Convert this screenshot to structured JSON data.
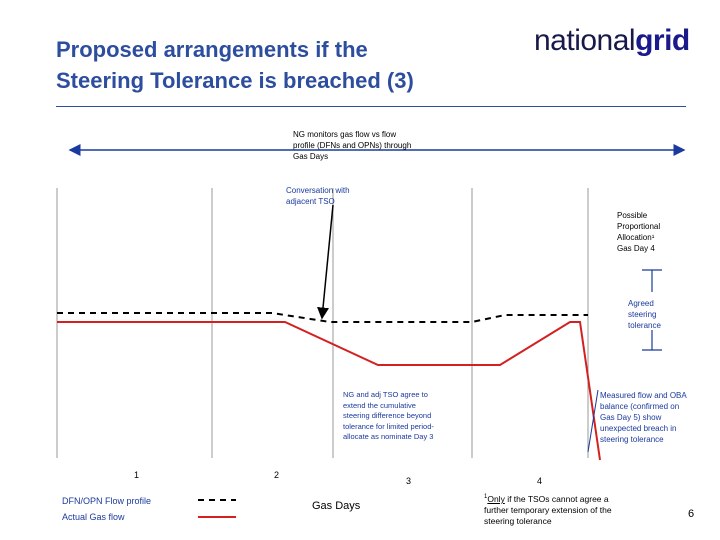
{
  "header": {
    "title_line1": "Proposed arrangements if the",
    "title_line2": "Steering Tolerance is breached (3)",
    "logo_part1": "national",
    "logo_part2": "grid"
  },
  "annotations": {
    "monitor": [
      "NG monitors gas flow vs flow",
      "profile (DFNs and OPNs) through",
      "Gas Days"
    ],
    "conversation": [
      "Conversation with",
      "adjacent TSO"
    ],
    "proportional": [
      "Possible",
      "Proportional",
      "Allocation¹",
      "Gas Day 4"
    ],
    "agreed": [
      "Agreed",
      "steering",
      "tolerance"
    ],
    "agree_extend": [
      "NG and adj TSO agree to",
      "extend the cumulative",
      "steering difference beyond",
      "tolerance for limited period-",
      "allocate as nominate Day 3"
    ],
    "measured": [
      "Measured flow and OBA",
      "balance (confirmed on",
      "Gas Day 5) show",
      "unexpected breach in",
      "steering tolerance"
    ]
  },
  "gas_days": [
    "1",
    "2",
    "3",
    "4"
  ],
  "axis_label": "Gas Days",
  "legend": {
    "profile_label": "DFN/OPN Flow profile",
    "actual_label": "Actual Gas flow"
  },
  "footnote": {
    "only": "Only",
    "rest_line1": " if the TSOs cannot agree a",
    "line2": "further temporary extension of the",
    "line3": "steering tolerance",
    "marker": "1"
  },
  "page_number": "6",
  "colors": {
    "title": "#2d4e9e",
    "actual_flow": "#d42020",
    "profile": "#000000",
    "annotation_blue": "#1a3a9e"
  }
}
